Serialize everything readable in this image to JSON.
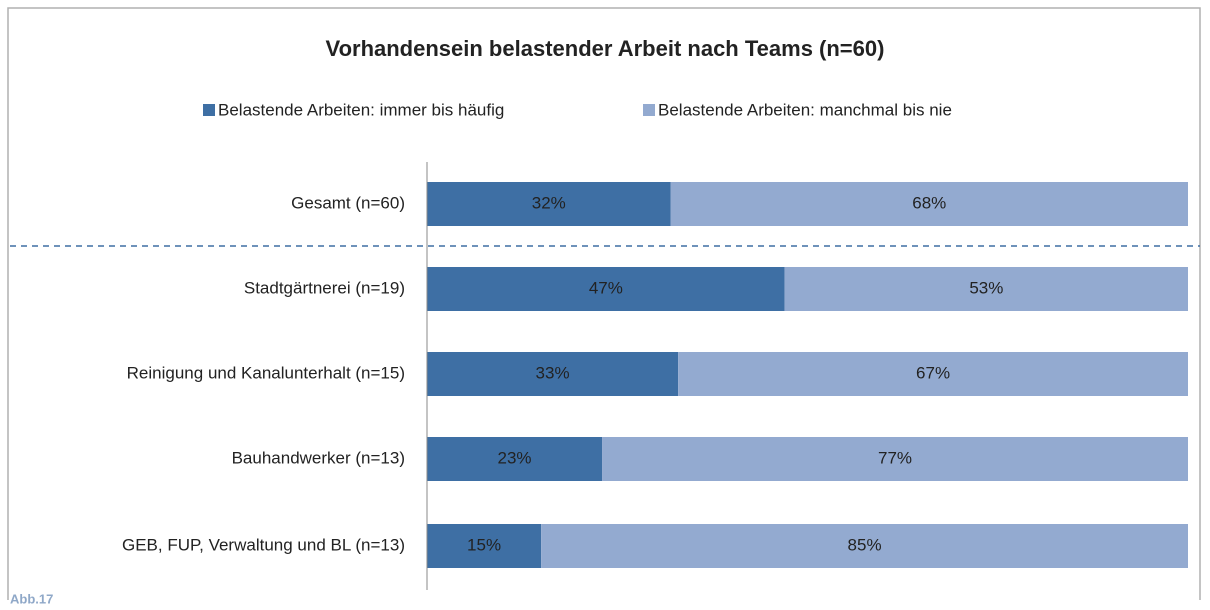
{
  "chart_data": {
    "type": "stacked_barh",
    "title": "Vorhandensein belastender Arbeit nach Teams (n=60)",
    "annotation": "Abb.17",
    "categories": [
      "Gesamt (n=60)",
      "Stadtgärtnerei (n=19)",
      "Reinigung und Kanalunterhalt (n=15)",
      "Bauhandwerker (n=13)",
      "GEB, FUP, Verwaltung und BL (n=13)"
    ],
    "series": [
      {
        "name": "Belastende Arbeiten: immer bis häufig",
        "color": "#3e6fa4",
        "values": [
          32,
          47,
          33,
          23,
          15
        ],
        "value_labels": [
          "32%",
          "47%",
          "33%",
          "23%",
          "15%"
        ]
      },
      {
        "name": "Belastende Arbeiten: manchmal bis nie",
        "color": "#93aad0",
        "values": [
          68,
          53,
          67,
          77,
          85
        ],
        "value_labels": [
          "68%",
          "53%",
          "67%",
          "77%",
          "85%"
        ]
      }
    ],
    "xlim": [
      0,
      100
    ],
    "legend": "top"
  }
}
